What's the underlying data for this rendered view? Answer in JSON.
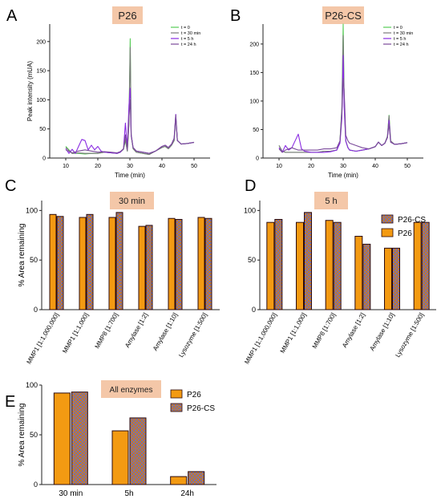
{
  "panel_letters": {
    "A": "A",
    "B": "B",
    "C": "C",
    "D": "D",
    "E": "E"
  },
  "colors": {
    "p26": "#f39a12",
    "p26cs_base": "#c47a28",
    "p26cs_check": "#7b6fa8",
    "bar_stroke": "#2b0b10",
    "title_box": "#f4c7a8",
    "t0": "#55cc55",
    "t30": "#7a7a7a",
    "t5h": "#8a2be2",
    "t24h": "#7a4a9a"
  },
  "chart_data": [
    {
      "id": "A",
      "type": "line",
      "title": "P26",
      "xlabel": "Time (min)",
      "ylabel": "Peak intensity (mUA)",
      "xlim": [
        5,
        55
      ],
      "ylim": [
        0,
        230
      ],
      "xticks": [
        "10",
        "20",
        "30",
        "40",
        "50"
      ],
      "yticks": [
        "0",
        "50",
        "100",
        "150",
        "200"
      ],
      "legend_position": "top-right",
      "series": [
        {
          "name": "t = 0",
          "color": "#55cc55",
          "x": [
            10,
            12,
            14,
            16,
            18,
            20,
            22,
            24,
            26,
            27,
            28,
            28.6,
            29.2,
            29.7,
            30.1,
            30.4,
            31,
            32,
            34,
            36,
            38,
            40,
            41,
            42,
            43,
            43.8,
            44.3,
            44.8,
            46,
            48,
            50
          ],
          "y": [
            20,
            8,
            8,
            7,
            8,
            8,
            10,
            9,
            8,
            10,
            15,
            30,
            12,
            60,
            205,
            40,
            16,
            10,
            8,
            6,
            12,
            18,
            20,
            16,
            22,
            30,
            72,
            30,
            24,
            25,
            27
          ]
        },
        {
          "name": "t = 30 min",
          "color": "#7a7a7a",
          "x": [
            10,
            12,
            14,
            16,
            18,
            20,
            22,
            24,
            26,
            27,
            28,
            28.6,
            29.2,
            29.7,
            30.1,
            30.4,
            31,
            32,
            34,
            36,
            38,
            40,
            41,
            42,
            43,
            43.8,
            44.3,
            44.8,
            46,
            48,
            50
          ],
          "y": [
            18,
            8,
            9,
            8,
            8,
            8,
            10,
            9,
            8,
            10,
            15,
            32,
            12,
            58,
            190,
            40,
            16,
            10,
            8,
            6,
            12,
            18,
            20,
            16,
            22,
            30,
            70,
            30,
            24,
            25,
            27
          ]
        },
        {
          "name": "t = 5 h",
          "color": "#8a2be2",
          "x": [
            10,
            11,
            12,
            13,
            14,
            15,
            16,
            17,
            18,
            19,
            20,
            21,
            22,
            24,
            26,
            27,
            28,
            28.6,
            29.2,
            29.7,
            30.1,
            30.4,
            31,
            32,
            34,
            36,
            38,
            40,
            41,
            42,
            43,
            43.8,
            44.3,
            44.8,
            46,
            48,
            50
          ],
          "y": [
            16,
            8,
            15,
            8,
            20,
            32,
            30,
            14,
            22,
            14,
            20,
            12,
            10,
            9,
            8,
            10,
            16,
            60,
            18,
            90,
            120,
            40,
            18,
            12,
            10,
            8,
            12,
            20,
            22,
            18,
            24,
            34,
            75,
            30,
            24,
            25,
            27
          ]
        },
        {
          "name": "t = 24 h",
          "color": "#7a4a9a",
          "x": [
            10,
            12,
            14,
            16,
            18,
            20,
            22,
            24,
            26,
            27,
            28,
            28.6,
            29.2,
            29.7,
            30.1,
            30.4,
            31,
            32,
            34,
            36,
            38,
            40,
            41,
            42,
            43,
            43.8,
            44.3,
            44.8,
            46,
            48,
            50
          ],
          "y": [
            14,
            9,
            12,
            14,
            12,
            10,
            11,
            10,
            9,
            11,
            16,
            40,
            14,
            70,
            100,
            38,
            18,
            12,
            10,
            8,
            12,
            20,
            22,
            18,
            24,
            34,
            74,
            30,
            24,
            25,
            27
          ]
        }
      ]
    },
    {
      "id": "B",
      "type": "line",
      "title": "P26-CS",
      "xlabel": "Time (min)",
      "ylabel": "",
      "xlim": [
        5,
        55
      ],
      "ylim": [
        0,
        235
      ],
      "xticks": [
        "10",
        "20",
        "30",
        "40",
        "50"
      ],
      "yticks": [
        "0",
        "50",
        "100",
        "150",
        "200"
      ],
      "legend_position": "top-right",
      "series": [
        {
          "name": "t = 0",
          "color": "#55cc55",
          "x": [
            10,
            11,
            12,
            14,
            16,
            18,
            20,
            22,
            24,
            26,
            28,
            29,
            29.6,
            30.0,
            30.3,
            30.8,
            31.5,
            32,
            34,
            36,
            38,
            40,
            41,
            42,
            43,
            43.8,
            44.3,
            44.8,
            46,
            48,
            50
          ],
          "y": [
            22,
            12,
            10,
            10,
            10,
            10,
            10,
            10,
            12,
            12,
            14,
            30,
            90,
            235,
            110,
            30,
            18,
            14,
            12,
            14,
            16,
            20,
            28,
            22,
            26,
            38,
            75,
            30,
            24,
            25,
            27
          ]
        },
        {
          "name": "t = 30 min",
          "color": "#7a7a7a",
          "x": [
            10,
            11,
            12,
            14,
            16,
            18,
            20,
            22,
            24,
            26,
            28,
            29,
            29.6,
            30.0,
            30.3,
            30.8,
            31.5,
            32,
            34,
            36,
            38,
            40,
            41,
            42,
            43,
            43.8,
            44.3,
            44.8,
            46,
            48,
            50
          ],
          "y": [
            22,
            12,
            10,
            10,
            10,
            10,
            10,
            10,
            12,
            12,
            14,
            28,
            85,
            215,
            100,
            30,
            18,
            14,
            12,
            14,
            16,
            20,
            28,
            22,
            26,
            38,
            74,
            30,
            24,
            25,
            27
          ]
        },
        {
          "name": "t = 5 h",
          "color": "#8a2be2",
          "x": [
            10,
            11,
            12,
            13,
            14,
            15,
            16,
            17,
            18,
            20,
            22,
            24,
            26,
            28,
            29,
            29.6,
            30.0,
            30.3,
            30.8,
            31.5,
            32,
            34,
            36,
            38,
            40,
            41,
            42,
            43,
            43.8,
            44.3,
            44.8,
            46,
            48,
            50
          ],
          "y": [
            18,
            10,
            22,
            14,
            18,
            30,
            42,
            16,
            12,
            10,
            10,
            10,
            11,
            14,
            26,
            70,
            180,
            90,
            30,
            18,
            14,
            12,
            14,
            16,
            20,
            28,
            22,
            26,
            36,
            66,
            28,
            24,
            25,
            27
          ]
        },
        {
          "name": "t = 24 h",
          "color": "#7a4a9a",
          "x": [
            10,
            11,
            12,
            14,
            16,
            18,
            20,
            22,
            24,
            26,
            28,
            29,
            29.6,
            30.0,
            30.3,
            30.8,
            31.5,
            32,
            34,
            36,
            38,
            40,
            41,
            42,
            43,
            43.8,
            44.3,
            44.8,
            46,
            48,
            50
          ],
          "y": [
            16,
            10,
            14,
            18,
            14,
            14,
            14,
            14,
            16,
            16,
            18,
            30,
            80,
            140,
            120,
            40,
            30,
            26,
            22,
            18,
            16,
            20,
            28,
            22,
            26,
            36,
            60,
            28,
            24,
            25,
            27
          ]
        }
      ]
    },
    {
      "id": "C",
      "type": "bar",
      "title": "30 min",
      "xlabel": "",
      "ylabel": "% Area remaining",
      "ylim": [
        0,
        110
      ],
      "yticks": [
        "0",
        "50",
        "100"
      ],
      "categories": [
        "MMP1 [1:1,000,000]",
        "MMP1 [1:1,000]",
        "MMP8 [1:700]",
        "Amylase [1:2]",
        "Amylase [1:10]",
        "Lysozyme [1:500]"
      ],
      "series": [
        {
          "name": "P26",
          "values": [
            96,
            93,
            93,
            84,
            92,
            93
          ]
        },
        {
          "name": "P26-CS",
          "values": [
            94,
            96,
            98,
            85,
            91,
            92
          ]
        }
      ]
    },
    {
      "id": "D",
      "type": "bar",
      "title": "5 h",
      "xlabel": "",
      "ylabel": "",
      "ylim": [
        0,
        110
      ],
      "yticks": [
        "0",
        "50",
        "100"
      ],
      "legend_position": "top-right",
      "legend_order": [
        "P26-CS",
        "P26"
      ],
      "categories": [
        "MMP1 [1:1,000,000]",
        "MMP1 [1:1,000]",
        "MMP8 [1:700]",
        "Amylase [1:2]",
        "Amylase [1:10]",
        "Lysozyme [1:500]"
      ],
      "series": [
        {
          "name": "P26",
          "values": [
            88,
            88,
            90,
            74,
            62,
            88
          ]
        },
        {
          "name": "P26-CS",
          "values": [
            91,
            98,
            88,
            66,
            62,
            88
          ]
        }
      ]
    },
    {
      "id": "E",
      "type": "bar",
      "title": "All enzymes",
      "xlabel": "",
      "ylabel": "% Area remaining",
      "ylim": [
        0,
        100
      ],
      "yticks": [
        "0",
        "50",
        "100"
      ],
      "legend_position": "top-right",
      "legend_order": [
        "P26",
        "P26-CS"
      ],
      "categories": [
        "30 min",
        "5h",
        "24h"
      ],
      "series": [
        {
          "name": "P26",
          "values": [
            92,
            54,
            8
          ]
        },
        {
          "name": "P26-CS",
          "values": [
            93,
            67,
            13
          ]
        }
      ]
    }
  ]
}
